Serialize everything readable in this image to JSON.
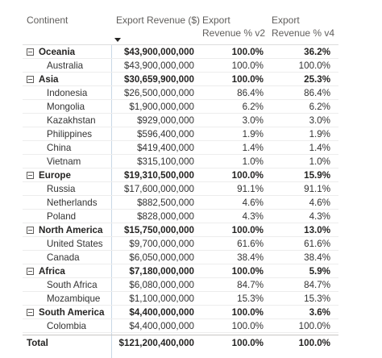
{
  "headers": {
    "continent": "Continent",
    "revenue": "Export Revenue ($)",
    "v2": "Export\nRevenue % v2",
    "v4": "Export\nRevenue % v4"
  },
  "groups": [
    {
      "name": "Oceania",
      "revenue": "$43,900,000,000",
      "v2": "100.0%",
      "v4": "36.2%",
      "children": [
        {
          "name": "Australia",
          "revenue": "$43,900,000,000",
          "v2": "100.0%",
          "v4": "100.0%"
        }
      ]
    },
    {
      "name": "Asia",
      "revenue": "$30,659,900,000",
      "v2": "100.0%",
      "v4": "25.3%",
      "children": [
        {
          "name": "Indonesia",
          "revenue": "$26,500,000,000",
          "v2": "86.4%",
          "v4": "86.4%"
        },
        {
          "name": "Mongolia",
          "revenue": "$1,900,000,000",
          "v2": "6.2%",
          "v4": "6.2%"
        },
        {
          "name": "Kazakhstan",
          "revenue": "$929,000,000",
          "v2": "3.0%",
          "v4": "3.0%"
        },
        {
          "name": "Philippines",
          "revenue": "$596,400,000",
          "v2": "1.9%",
          "v4": "1.9%"
        },
        {
          "name": "China",
          "revenue": "$419,400,000",
          "v2": "1.4%",
          "v4": "1.4%"
        },
        {
          "name": "Vietnam",
          "revenue": "$315,100,000",
          "v2": "1.0%",
          "v4": "1.0%"
        }
      ]
    },
    {
      "name": "Europe",
      "revenue": "$19,310,500,000",
      "v2": "100.0%",
      "v4": "15.9%",
      "children": [
        {
          "name": "Russia",
          "revenue": "$17,600,000,000",
          "v2": "91.1%",
          "v4": "91.1%"
        },
        {
          "name": "Netherlands",
          "revenue": "$882,500,000",
          "v2": "4.6%",
          "v4": "4.6%"
        },
        {
          "name": "Poland",
          "revenue": "$828,000,000",
          "v2": "4.3%",
          "v4": "4.3%"
        }
      ]
    },
    {
      "name": "North America",
      "revenue": "$15,750,000,000",
      "v2": "100.0%",
      "v4": "13.0%",
      "children": [
        {
          "name": "United States",
          "revenue": "$9,700,000,000",
          "v2": "61.6%",
          "v4": "61.6%"
        },
        {
          "name": "Canada",
          "revenue": "$6,050,000,000",
          "v2": "38.4%",
          "v4": "38.4%"
        }
      ]
    },
    {
      "name": "Africa",
      "revenue": "$7,180,000,000",
      "v2": "100.0%",
      "v4": "5.9%",
      "children": [
        {
          "name": "South Africa",
          "revenue": "$6,080,000,000",
          "v2": "84.7%",
          "v4": "84.7%"
        },
        {
          "name": "Mozambique",
          "revenue": "$1,100,000,000",
          "v2": "15.3%",
          "v4": "15.3%"
        }
      ]
    },
    {
      "name": "South America",
      "revenue": "$4,400,000,000",
      "v2": "100.0%",
      "v4": "3.6%",
      "children": [
        {
          "name": "Colombia",
          "revenue": "$4,400,000,000",
          "v2": "100.0%",
          "v4": "100.0%"
        }
      ]
    }
  ],
  "total": {
    "name": "Total",
    "revenue": "$121,200,400,000",
    "v2": "100.0%",
    "v4": "100.0%"
  }
}
